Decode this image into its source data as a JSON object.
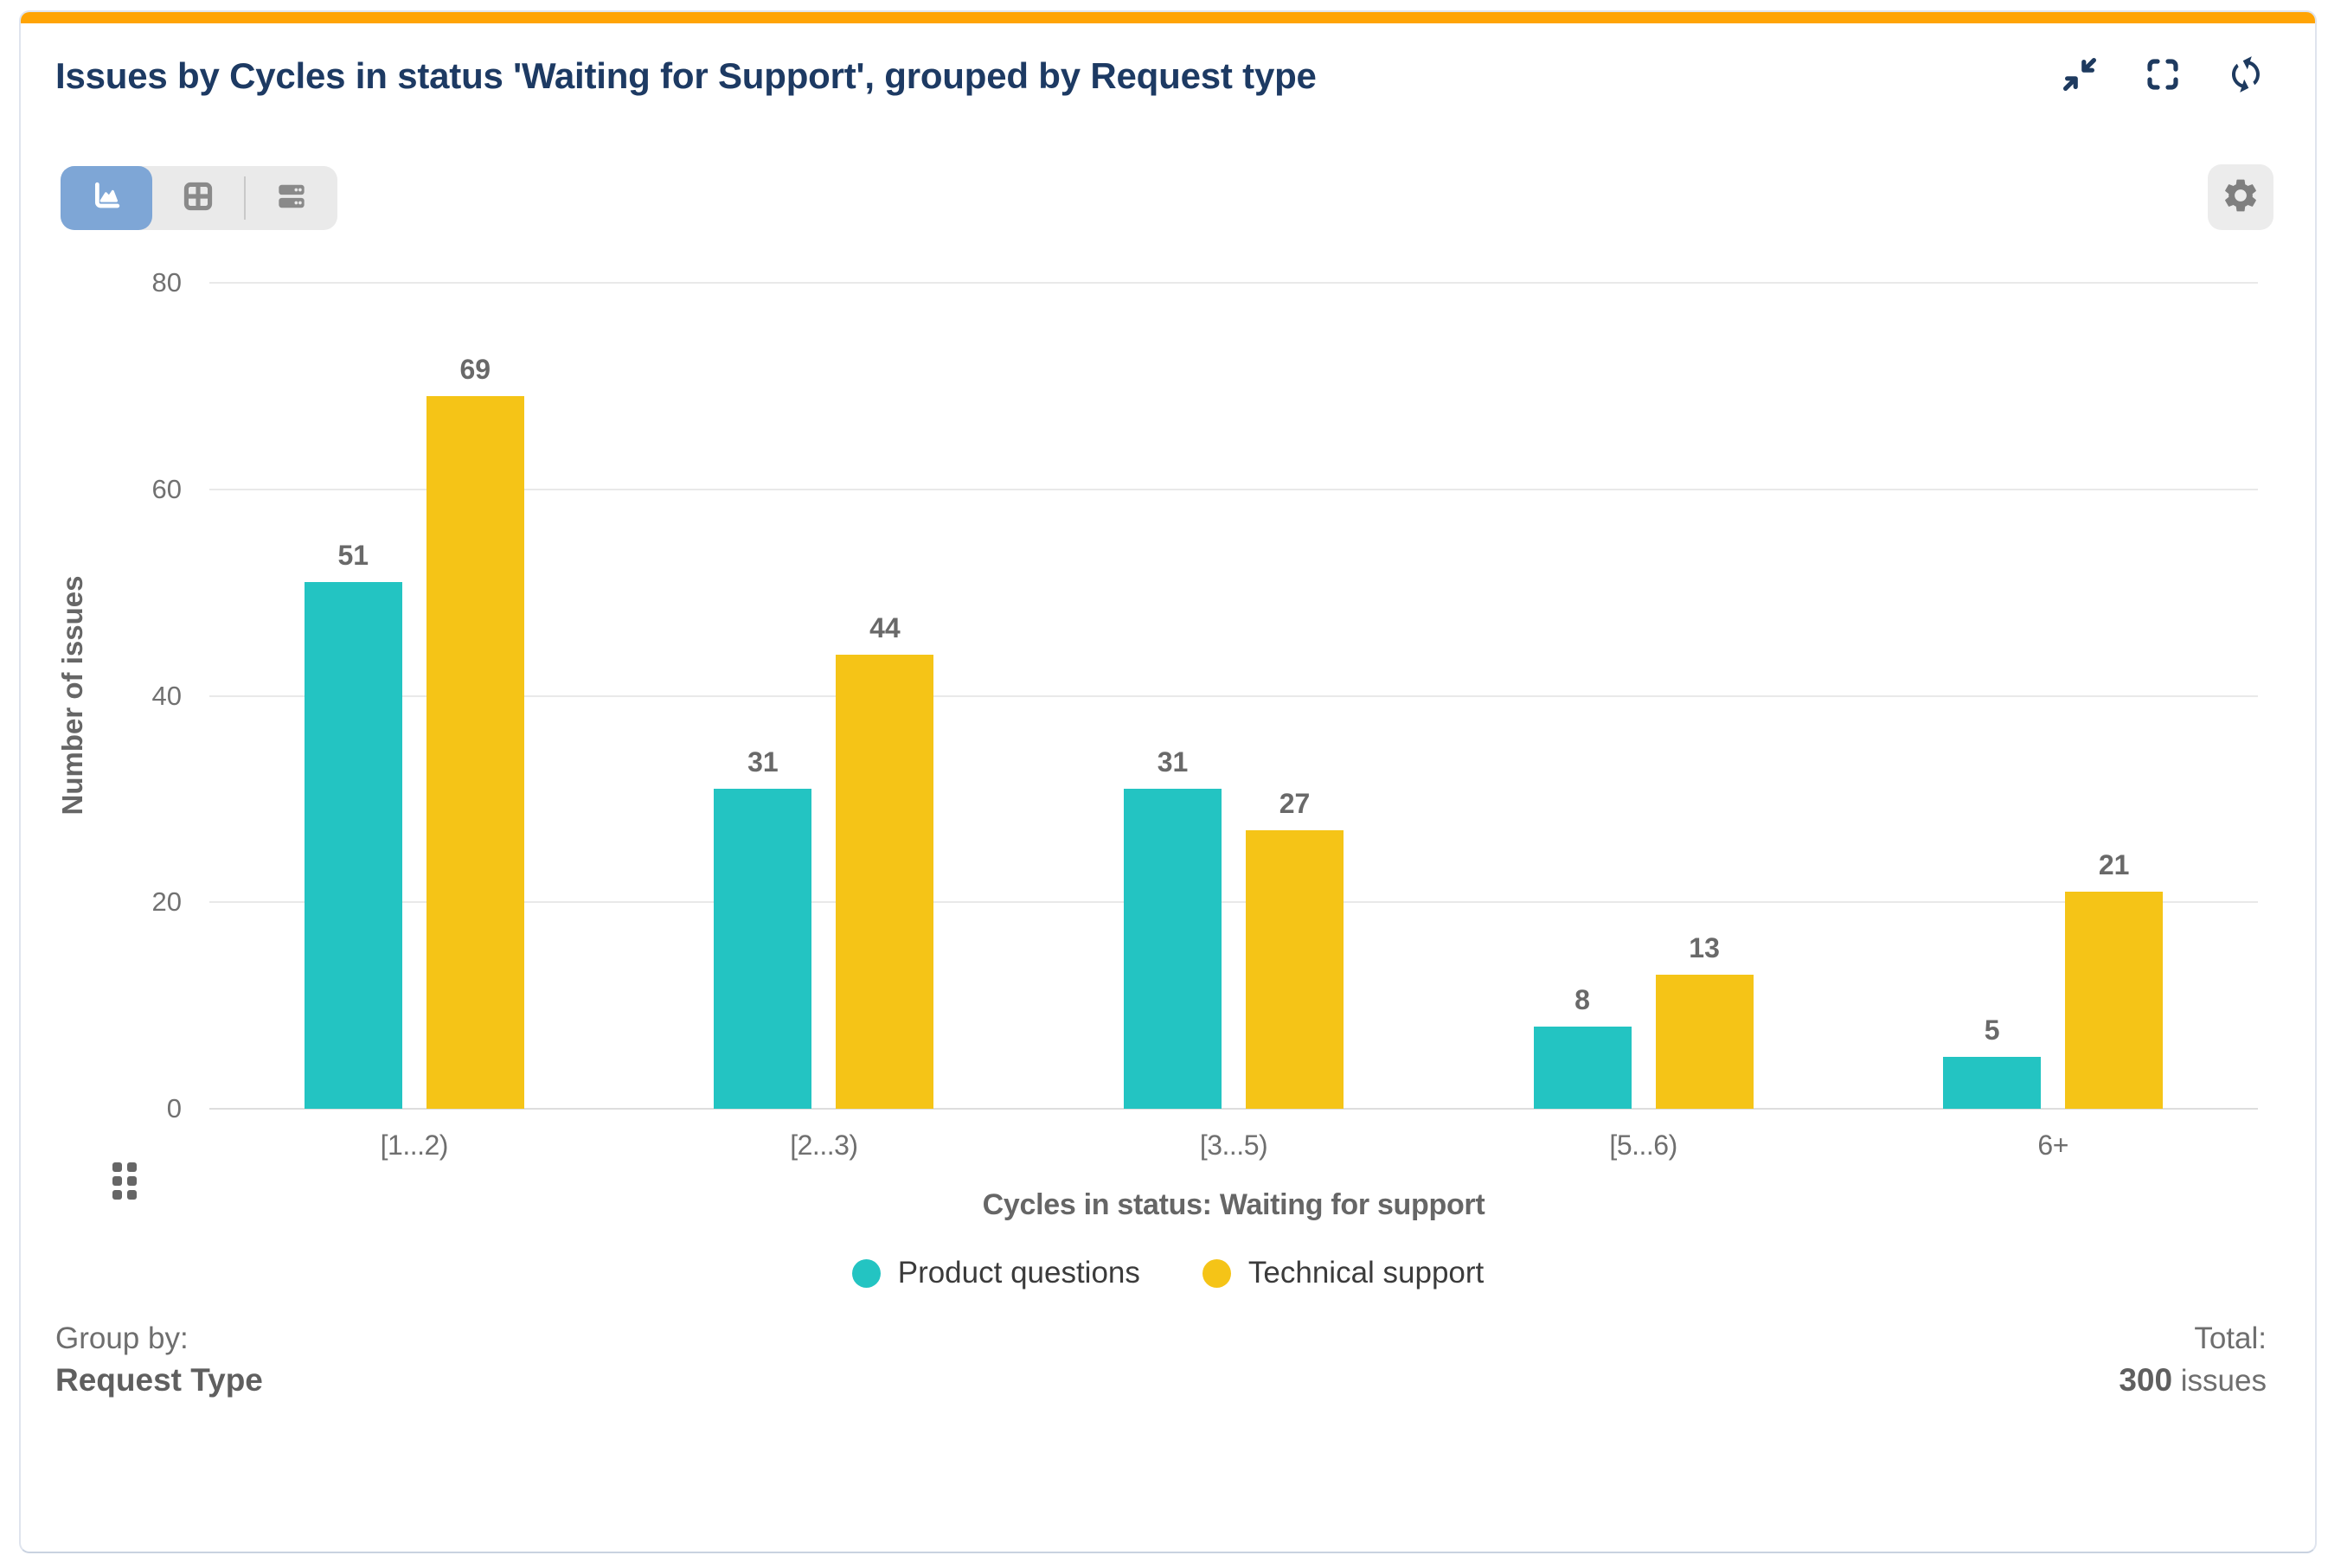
{
  "card": {
    "title": "Issues by Cycles in status 'Waiting for Support', grouped by Request type"
  },
  "colors": {
    "accent-orange": "#ffa405",
    "title-navy": "#1d3a63",
    "icon-navy": "#1e3a5f",
    "selected-blue": "#7ea6d6",
    "card-border": "#dfe4ee",
    "series-teal": "#23c4c2",
    "series-yellow": "#f5c417"
  },
  "icons": {
    "header": [
      "collapse-icon",
      "fullscreen-icon",
      "refresh-icon"
    ],
    "view_switcher": [
      "chart-view-icon",
      "table-view-icon",
      "rows-view-icon"
    ],
    "settings": "gear-icon",
    "drag": "drag-handle-icon"
  },
  "toolbar": {
    "selected_view": "chart"
  },
  "chart_data": {
    "type": "bar",
    "title": "Issues by Cycles in status 'Waiting for Support', grouped by Request type",
    "categories": [
      "[1...2)",
      "[2...3)",
      "[3...5)",
      "[5...6)",
      "6+"
    ],
    "series": [
      {
        "name": "Product questions",
        "color": "#23c4c2",
        "values": [
          51,
          31,
          31,
          8,
          5
        ]
      },
      {
        "name": "Technical support",
        "color": "#f5c417",
        "values": [
          69,
          44,
          27,
          13,
          21
        ]
      }
    ],
    "xlabel": "Cycles in status: Waiting for support",
    "ylabel": "Number of issues",
    "ylim": [
      0,
      80
    ],
    "yticks": [
      0,
      20,
      40,
      60,
      80
    ],
    "grid": true,
    "legend_position": "bottom",
    "value_labels": true
  },
  "footer": {
    "group_by_label": "Group by:",
    "group_by_value": "Request Type",
    "total_label": "Total:",
    "total_value": "300",
    "total_unit": "issues"
  }
}
